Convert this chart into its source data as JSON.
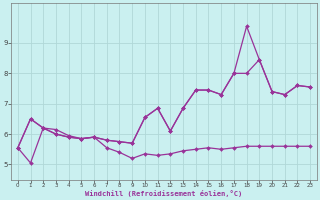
{
  "xlabel": "Windchill (Refroidissement éolien,°C)",
  "background_color": "#caf0f0",
  "grid_color": "#b0d8d8",
  "line_color": "#993399",
  "xlim": [
    -0.5,
    23.5
  ],
  "ylim": [
    4.5,
    10.3
  ],
  "xticks": [
    0,
    1,
    2,
    3,
    4,
    5,
    6,
    7,
    8,
    9,
    10,
    11,
    12,
    13,
    14,
    15,
    16,
    17,
    18,
    19,
    20,
    21,
    22,
    23
  ],
  "yticks": [
    5,
    6,
    7,
    8,
    9
  ],
  "line1_x": [
    0,
    1,
    2,
    3,
    4,
    5,
    6,
    7,
    8,
    9,
    10,
    11,
    12,
    13,
    14,
    15,
    16,
    17,
    18,
    19,
    20,
    21,
    22,
    23
  ],
  "line1_y": [
    5.55,
    6.5,
    6.2,
    6.0,
    5.9,
    5.85,
    5.9,
    5.8,
    5.75,
    5.7,
    6.55,
    6.85,
    6.1,
    6.85,
    7.45,
    7.45,
    7.3,
    8.0,
    9.55,
    8.45,
    7.4,
    7.3,
    7.6,
    7.55
  ],
  "line2_x": [
    0,
    1,
    2,
    3,
    4,
    5,
    6,
    7,
    8,
    9,
    10,
    11,
    12,
    13,
    14,
    15,
    16,
    17,
    18,
    19,
    20,
    21,
    22,
    23
  ],
  "line2_y": [
    5.55,
    5.05,
    6.2,
    6.15,
    5.95,
    5.85,
    5.9,
    5.55,
    5.4,
    5.2,
    5.35,
    5.3,
    5.35,
    5.45,
    5.5,
    5.55,
    5.5,
    5.55,
    5.6,
    5.6,
    5.6,
    5.6,
    5.6,
    5.6
  ],
  "line3_x": [
    0,
    1,
    2,
    3,
    4,
    5,
    6,
    7,
    8,
    9,
    10,
    11,
    12,
    13,
    14,
    15,
    16,
    17,
    18,
    19,
    20,
    21,
    22,
    23
  ],
  "line3_y": [
    5.55,
    6.5,
    6.2,
    6.0,
    5.9,
    5.85,
    5.9,
    5.8,
    5.75,
    5.7,
    6.55,
    6.85,
    6.1,
    6.85,
    7.45,
    7.45,
    7.3,
    8.0,
    8.0,
    8.45,
    7.4,
    7.3,
    7.6,
    7.55
  ]
}
